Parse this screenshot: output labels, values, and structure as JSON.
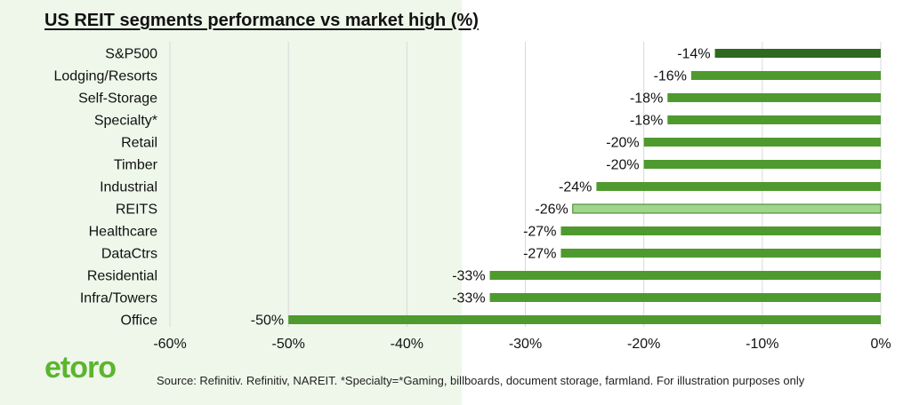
{
  "chart_data": {
    "type": "bar",
    "orientation": "horizontal",
    "title": "US REIT segments performance vs market high (%)",
    "categories": [
      "S&P500",
      "Lodging/Resorts",
      "Self-Storage",
      "Specialty*",
      "Retail",
      "Timber",
      "Industrial",
      "REITS",
      "Healthcare",
      "DataCtrs",
      "Residential",
      "Infra/Towers",
      "Office"
    ],
    "values": [
      -14,
      -16,
      -18,
      -18,
      -20,
      -20,
      -24,
      -26,
      -27,
      -27,
      -33,
      -33,
      -50
    ],
    "data_labels": [
      "-14%",
      "-16%",
      "-18%",
      "-18%",
      "-20%",
      "-20%",
      "-24%",
      "-26%",
      "-27%",
      "-27%",
      "-33%",
      "-33%",
      "-50%"
    ],
    "xlim": [
      -60,
      0
    ],
    "xticks": [
      -60,
      -50,
      -40,
      -30,
      -20,
      -10,
      0
    ],
    "xtick_labels": [
      "-60%",
      "-50%",
      "-40%",
      "-30%",
      "-20%",
      "-10%",
      "0%"
    ],
    "grid": "vertical",
    "legend": "none",
    "colors": {
      "default": "#4e9a2f",
      "S&P500": "#2d6a1e",
      "REITS": "#9fd68c",
      "REITS_border": "#3e7f28",
      "gridline": "#d9d9d9"
    }
  },
  "brand": {
    "logo_text": "etoro",
    "logo_color": "#5bb52e"
  },
  "footer": {
    "source": "Source: Refinitiv. Refinitiv, NAREIT. *Specialty=*Gaming, billboards, document storage, farmland. For illustration purposes only"
  }
}
